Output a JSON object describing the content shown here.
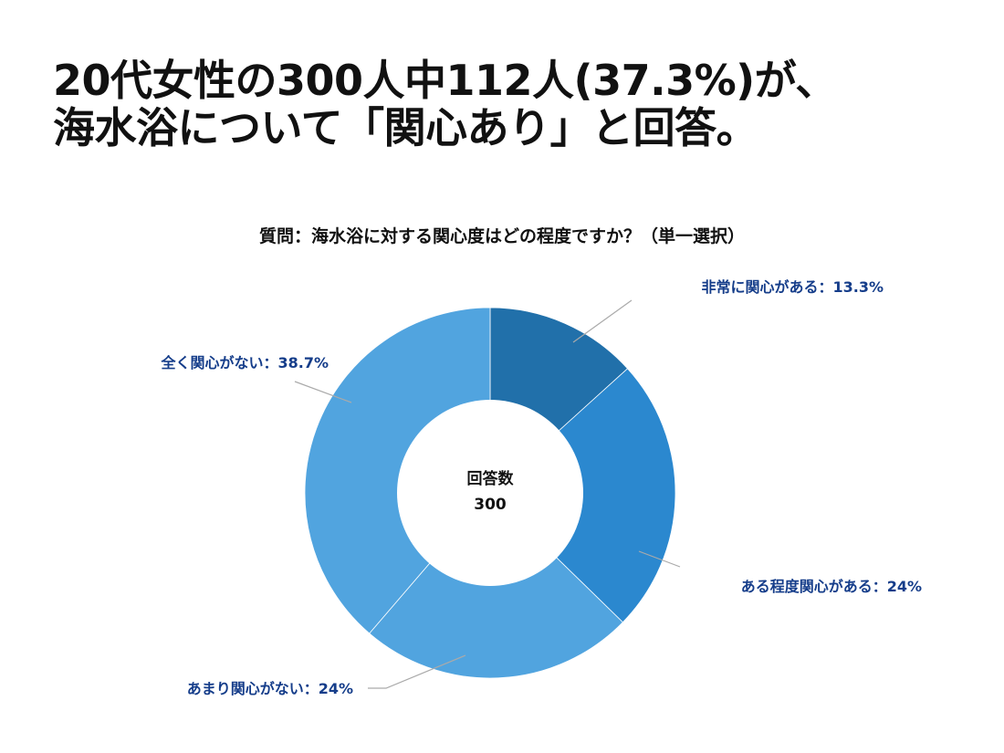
{
  "headline": {
    "line1": "20代女性の300人中112人(37.3%)が、",
    "line2": "海水浴について「関心あり」と回答。"
  },
  "question": "質問：海水浴に対する関心度はどの程度ですか？（単一選択）",
  "chart_data": {
    "type": "pie",
    "donut": true,
    "center_label": "回答数",
    "center_value": "300",
    "unit": "%",
    "label_color": "#153d8a",
    "slices": [
      {
        "name": "非常に関心がある",
        "value": 13.3,
        "label": "非常に関心がある：13.3%",
        "color": "#2170aa"
      },
      {
        "name": "ある程度関心がある",
        "value": 24,
        "label": "ある程度関心がある：24%",
        "color": "#2b88cf"
      },
      {
        "name": "あまり関心がない",
        "value": 24,
        "label": "あまり関心がない：24%",
        "color": "#51a4df"
      },
      {
        "name": "全く関心がない",
        "value": 38.7,
        "label": "全く関心がない：38.7%",
        "color": "#51a4df"
      }
    ]
  }
}
